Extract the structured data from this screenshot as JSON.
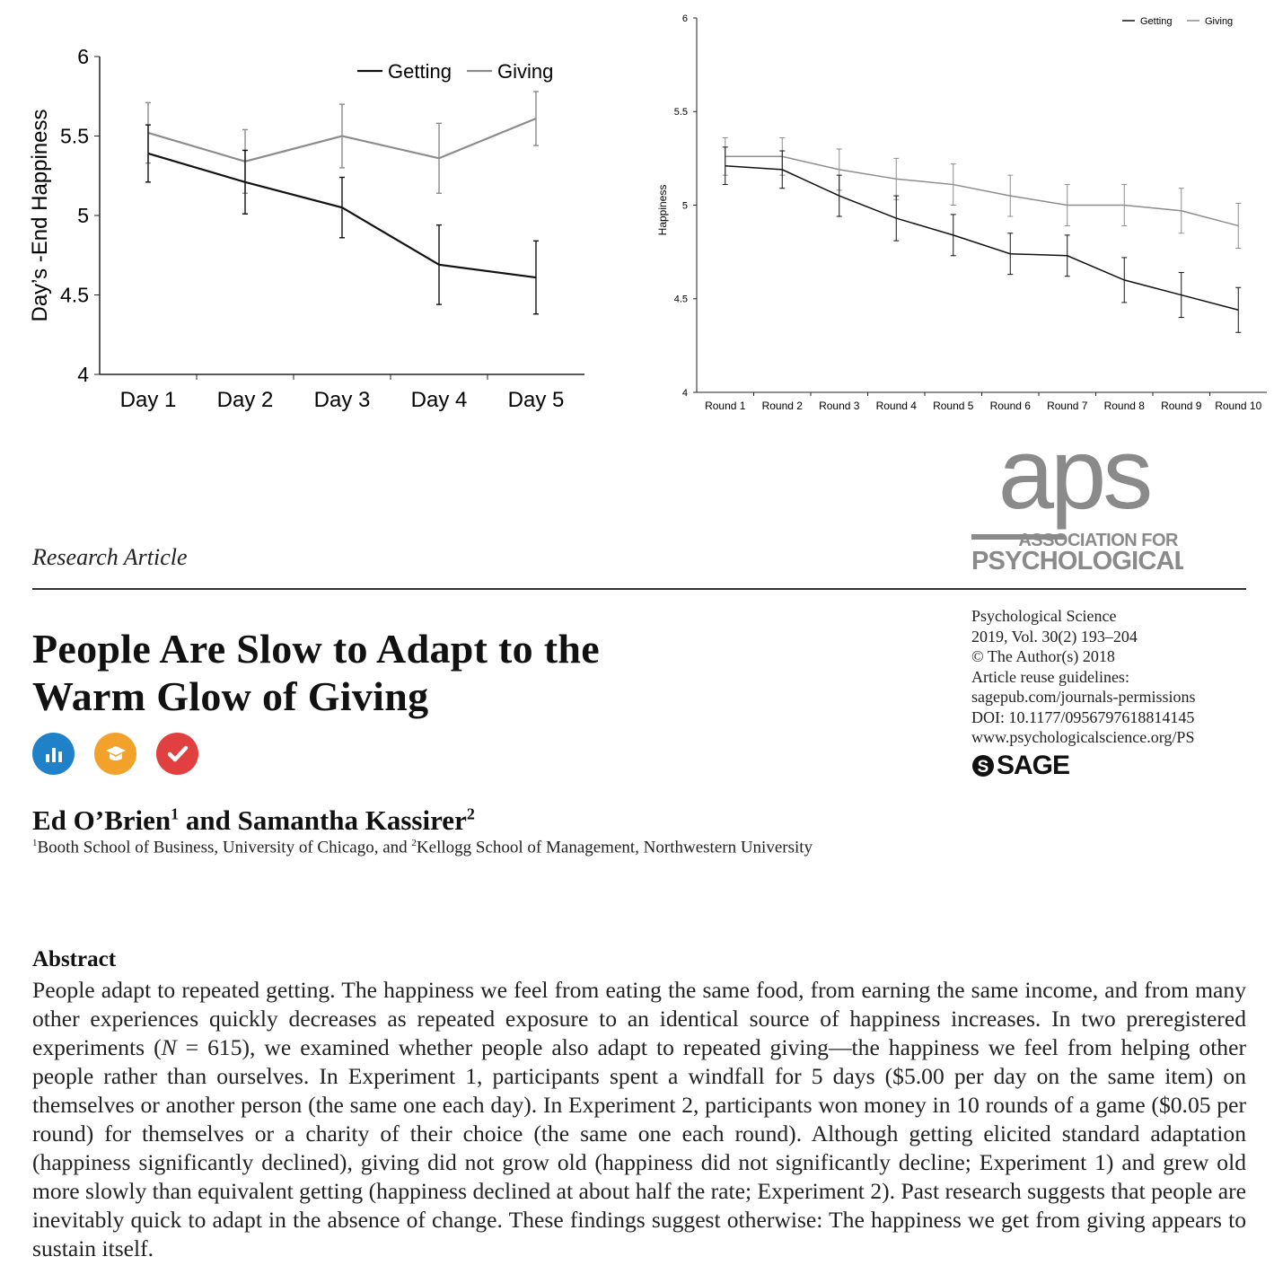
{
  "figures": {
    "chart_data": [
      {
        "type": "line",
        "title": "",
        "xlabel": "",
        "ylabel": "Day’s -End Happiness",
        "ylim": [
          4,
          6
        ],
        "yticks": [
          "4",
          "4.5",
          "5",
          "5.5",
          "6"
        ],
        "categories": [
          "Day 1",
          "Day 2",
          "Day 3",
          "Day 4",
          "Day 5"
        ],
        "legend": "top-right",
        "grid": false,
        "series": [
          {
            "name": "Getting",
            "color": "#111111",
            "values": [
              5.39,
              5.21,
              5.05,
              4.69,
              4.61
            ],
            "err": [
              0.18,
              0.2,
              0.19,
              0.25,
              0.23
            ]
          },
          {
            "name": "Giving",
            "color": "#8c8c8c",
            "values": [
              5.52,
              5.34,
              5.5,
              5.36,
              5.61
            ],
            "err": [
              0.19,
              0.2,
              0.2,
              0.22,
              0.17
            ]
          }
        ]
      },
      {
        "type": "line",
        "title": "",
        "xlabel": "",
        "ylabel": "Happiness",
        "ylim": [
          4,
          6
        ],
        "yticks": [
          "4",
          "4.5",
          "5",
          "5.5",
          "6"
        ],
        "categories": [
          "Round 1",
          "Round 2",
          "Round 3",
          "Round 4",
          "Round 5",
          "Round 6",
          "Round 7",
          "Round 8",
          "Round 9",
          "Round 10"
        ],
        "legend": "top-right",
        "grid": false,
        "series": [
          {
            "name": "Getting",
            "color": "#111111",
            "values": [
              5.21,
              5.19,
              5.05,
              4.93,
              4.84,
              4.74,
              4.73,
              4.6,
              4.52,
              4.44
            ],
            "err": [
              0.1,
              0.1,
              0.11,
              0.12,
              0.11,
              0.11,
              0.11,
              0.12,
              0.12,
              0.12
            ]
          },
          {
            "name": "Giving",
            "color": "#8c8c8c",
            "values": [
              5.26,
              5.26,
              5.19,
              5.14,
              5.11,
              5.05,
              5.0,
              5.0,
              4.97,
              4.89
            ],
            "err": [
              0.1,
              0.1,
              0.11,
              0.11,
              0.11,
              0.11,
              0.11,
              0.11,
              0.12,
              0.12
            ]
          }
        ]
      }
    ]
  },
  "colors": {
    "getting": "#111111",
    "giving": "#8c8c8c",
    "aps_gray": "#8a8a8a",
    "badge_blue": "#1f82c9",
    "badge_orange": "#f2a22a",
    "badge_red": "#e0403f"
  },
  "logo": {
    "aps": "aps",
    "org_line1": "ASSOCIATION FOR",
    "org_line2": "PSYCHOLOGICAL SCIENCE"
  },
  "article": {
    "section": "Research Article",
    "title_line1": "People Are Slow to Adapt to the",
    "title_line2": "Warm Glow of Giving",
    "badges": [
      "bar-chart-icon",
      "graduation-cap-icon",
      "checkmark-icon"
    ],
    "author1": "Ed O’Brien",
    "author1_sup": "1",
    "author_and": " and ",
    "author2": "Samantha Kassirer",
    "author2_sup": "2",
    "affil_sup1": "1",
    "affil1": "Booth School of Business, University of Chicago, and ",
    "affil_sup2": "2",
    "affil2": "Kellogg School of Management, Northwestern University"
  },
  "journal": {
    "name": "Psychological Science",
    "issue": "2019, Vol. 30(2) 193–204",
    "copyright": "© The Author(s) 2018",
    "reuse": "Article reuse guidelines:",
    "permissions": "sagepub.com/journals-permissions",
    "doi": "DOI: 10.1177/0956797618814145",
    "website": "www.psychologicalscience.org/PS",
    "publisher": "SAGE"
  },
  "abstract": {
    "heading": "Abstract",
    "pre_n": "People adapt to repeated getting. The happiness we feel from eating the same food, from earning the same income, and from many other experiences quickly decreases as repeated exposure to an identical source of happiness increases. In two preregistered experiments (",
    "n_symbol": "N",
    "post_n": " = 615), we examined whether people also adapt to repeated giving—the happiness we feel from helping other people rather than ourselves. In Experiment 1, participants spent a windfall for 5 days ($5.00 per day on the same item) on themselves or another person (the same one each day). In Experiment 2, participants won money in 10 rounds of a game ($0.05 per round) for themselves or a charity of their choice (the same one each round). Although getting elicited standard adaptation (happiness significantly declined), giving did not grow old (happiness did not significantly decline; Experiment 1) and grew old more slowly than equivalent getting (happiness declined at about half the rate; Experiment 2). Past research suggests that people are inevitably quick to adapt in the absence of change. These findings suggest otherwise: The happiness we get from giving appears to sustain itself."
  }
}
